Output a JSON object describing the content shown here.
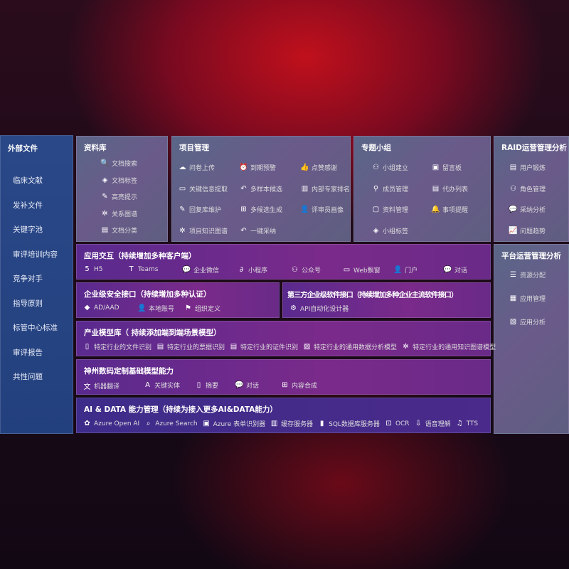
{
  "sidebar": {
    "title": "外部文件",
    "items": [
      "临床文献",
      "发补文件",
      "关键字池",
      "审评培训内容",
      "竞争对手",
      "指导原则",
      "标管中心标准",
      "审评报告",
      "共性问题"
    ]
  },
  "library": {
    "title": "资料库",
    "items": [
      {
        "icon": "doc-search",
        "label": "文档搜索"
      },
      {
        "icon": "tag",
        "label": "文档标签"
      },
      {
        "icon": "pen",
        "label": "高亮提示"
      },
      {
        "icon": "graph",
        "label": "关系图谱"
      },
      {
        "icon": "doc-category",
        "label": "文档分类"
      }
    ]
  },
  "project": {
    "title": "项目管理",
    "items": [
      {
        "icon": "cloud-upload",
        "label": "问卷上传"
      },
      {
        "icon": "alarm",
        "label": "到期预警"
      },
      {
        "icon": "thumbs-up",
        "label": "点赞感谢"
      },
      {
        "icon": "window",
        "label": "关键信息提取"
      },
      {
        "icon": "reply",
        "label": "多样本候选"
      },
      {
        "icon": "ranking",
        "label": "内部专家排名"
      },
      {
        "icon": "pen",
        "label": "回复库维护"
      },
      {
        "icon": "puzzle",
        "label": "多候选生成"
      },
      {
        "icon": "user",
        "label": "评审员画像"
      },
      {
        "icon": "graph",
        "label": "项目知识图谱"
      },
      {
        "icon": "reply",
        "label": "一键采纳"
      }
    ]
  },
  "topic": {
    "title": "专题小组",
    "items": [
      {
        "icon": "users",
        "label": "小组建立"
      },
      {
        "icon": "bbs",
        "label": "留言板"
      },
      {
        "icon": "user-add",
        "label": "成员管理"
      },
      {
        "icon": "clipboard",
        "label": "代办列表"
      },
      {
        "icon": "folder",
        "label": "资料管理"
      },
      {
        "icon": "bell",
        "label": "事项提醒"
      },
      {
        "icon": "tag",
        "label": "小组标签"
      }
    ]
  },
  "raid": {
    "title": "RAID运营管理分析",
    "items": [
      {
        "icon": "id-card",
        "label": "用户锻炼"
      },
      {
        "icon": "users",
        "label": "角色管理"
      },
      {
        "icon": "qa",
        "label": "采纳分析"
      },
      {
        "icon": "trend",
        "label": "问题趋势"
      }
    ]
  },
  "platform": {
    "title": "平台运营管理分析",
    "items": [
      {
        "icon": "list",
        "label": "资源分配"
      },
      {
        "icon": "apps",
        "label": "应用管理"
      },
      {
        "icon": "analytics",
        "label": "应用分析"
      }
    ]
  },
  "app": {
    "title": "应用交互（持续增加多种客户端）",
    "items": [
      {
        "icon": "html5",
        "label": "H5"
      },
      {
        "icon": "teams",
        "label": "Teams"
      },
      {
        "icon": "wechat",
        "label": "企业微信"
      },
      {
        "icon": "mini-program",
        "label": "小程序"
      },
      {
        "icon": "users",
        "label": "公众号"
      },
      {
        "icon": "window",
        "label": "Web飘窗"
      },
      {
        "icon": "portal",
        "label": "门户"
      },
      {
        "icon": "chat",
        "label": "对话"
      }
    ]
  },
  "security": {
    "title": "企业级安全接口（持续增加多种认证）",
    "items": [
      {
        "icon": "diamond",
        "label": "AD/AAD"
      },
      {
        "icon": "user",
        "label": "本地账号"
      },
      {
        "icon": "org",
        "label": "组织定义"
      }
    ]
  },
  "third": {
    "title": "第三方企业级软件接口（持续增加多种企业主流软件接口）",
    "items": [
      {
        "icon": "gear",
        "label": "API自动化设计器"
      }
    ]
  },
  "industry": {
    "title": "产业模型库（ 持续添加端到端场景模型）",
    "items": [
      {
        "icon": "doc",
        "label": "特定行业的文件识别"
      },
      {
        "icon": "receipt",
        "label": "特定行业的票据识别"
      },
      {
        "icon": "id-card",
        "label": "特定行业的证件识别"
      },
      {
        "icon": "chart",
        "label": "特定行业的通用数据分析模型"
      },
      {
        "icon": "graph",
        "label": "特定行业的通用知识图谱模型"
      }
    ]
  },
  "base": {
    "title": "神州数码定制基础模型能力",
    "items": [
      {
        "icon": "translate",
        "label": "机器翻译"
      },
      {
        "icon": "entity",
        "label": "关键实体"
      },
      {
        "icon": "doc",
        "label": "摘要"
      },
      {
        "icon": "chat",
        "label": "对话"
      },
      {
        "icon": "puzzle",
        "label": "内容合成"
      }
    ]
  },
  "ai": {
    "title": "AI & DATA 能力管理（持续为接入更多AI&DATA能力）",
    "items": [
      {
        "icon": "openai",
        "label": "Azure Open AI"
      },
      {
        "icon": "search",
        "label": "Azure Search"
      },
      {
        "icon": "form",
        "label": "Azure 表单识别器"
      },
      {
        "icon": "cache",
        "label": "缓存服务器"
      },
      {
        "icon": "sql",
        "label": "SQL数据库服务器"
      },
      {
        "icon": "ocr",
        "label": "OCR"
      },
      {
        "icon": "speech",
        "label": "语音理解"
      },
      {
        "icon": "tts",
        "label": "TTS"
      }
    ]
  }
}
